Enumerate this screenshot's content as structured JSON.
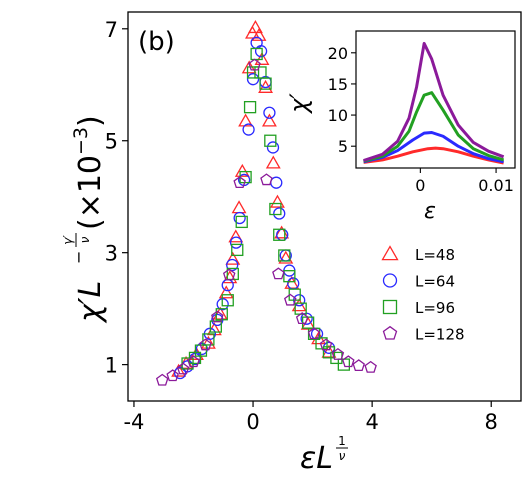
{
  "chart_data": {
    "type": "scatter",
    "panel_label": "(b)",
    "xlabel": {
      "main": "εL",
      "exp_num": "1",
      "exp_den": "ν"
    },
    "ylabel": {
      "main": "χ′L",
      "exp_minus": "−",
      "exp_num": "γ′",
      "exp_den": "ν",
      "suffix": " (×10",
      "suffix_sup": "−3",
      "suffix_end": ")"
    },
    "xlim": [
      -4.2,
      9.0
    ],
    "ylim": [
      0.35,
      7.3
    ],
    "xticks": [
      {
        "v": -4,
        "t": "-4"
      },
      {
        "v": 0,
        "t": "0"
      },
      {
        "v": 4,
        "t": "4"
      },
      {
        "v": 8,
        "t": "8"
      }
    ],
    "yticks": [
      {
        "v": 1,
        "t": "1"
      },
      {
        "v": 3,
        "t": "3"
      },
      {
        "v": 5,
        "t": "5"
      },
      {
        "v": 7,
        "t": "7"
      }
    ],
    "legend_position": "right",
    "series": [
      {
        "name": "L=48",
        "marker": "triangle",
        "color": "#ff2a2a",
        "x": [
          -2.5,
          -2.25,
          -1.9,
          -1.5,
          -1.3,
          -1.1,
          -0.9,
          -0.78,
          -0.68,
          -0.58,
          -0.47,
          -0.36,
          -0.25,
          -0.13,
          -0.02,
          0.08,
          0.2,
          0.3,
          0.42,
          0.55,
          0.68,
          0.82,
          0.96,
          1.1,
          1.3,
          1.55,
          1.85,
          2.2,
          2.55
        ],
        "y": [
          0.88,
          1.02,
          1.18,
          1.38,
          1.62,
          1.9,
          2.28,
          2.55,
          2.88,
          3.28,
          3.8,
          4.45,
          5.35,
          6.3,
          6.92,
          7.02,
          6.88,
          6.45,
          5.95,
          5.35,
          4.6,
          3.9,
          3.35,
          2.9,
          2.45,
          2.05,
          1.72,
          1.46,
          1.22
        ]
      },
      {
        "name": "L=64",
        "marker": "circle",
        "color": "#2a2aff",
        "x": [
          -2.45,
          -2.2,
          -1.95,
          -1.72,
          -1.45,
          -1.2,
          -1.02,
          -0.85,
          -0.7,
          -0.57,
          -0.45,
          -0.3,
          -0.15,
          0.0,
          0.12,
          0.27,
          0.42,
          0.55,
          0.67,
          0.78,
          0.88,
          0.98,
          1.1,
          1.22,
          1.35,
          1.55,
          1.8,
          2.15,
          2.55
        ],
        "y": [
          0.85,
          0.97,
          1.1,
          1.28,
          1.55,
          1.8,
          2.08,
          2.42,
          2.78,
          3.18,
          3.62,
          4.3,
          5.2,
          6.1,
          6.75,
          6.6,
          6.05,
          5.5,
          4.88,
          4.25,
          3.7,
          3.32,
          2.95,
          2.68,
          2.45,
          2.15,
          1.82,
          1.55,
          1.3
        ]
      },
      {
        "name": "L=96",
        "marker": "square",
        "color": "#22a022",
        "x": [
          -2.2,
          -1.95,
          -1.75,
          -1.5,
          -1.25,
          -1.05,
          -0.85,
          -0.68,
          -0.53,
          -0.38,
          -0.25,
          -0.1,
          0.0,
          0.12,
          0.25,
          0.42,
          0.58,
          0.75,
          0.88,
          1.05,
          1.22,
          1.4,
          1.6,
          1.85,
          2.05,
          2.3,
          2.55,
          2.8,
          3.05
        ],
        "y": [
          1.02,
          1.12,
          1.25,
          1.45,
          1.68,
          1.9,
          2.15,
          2.62,
          3.05,
          3.55,
          4.35,
          5.6,
          6.22,
          6.55,
          6.22,
          6.02,
          5.0,
          3.78,
          3.32,
          2.95,
          2.58,
          2.25,
          2.0,
          1.75,
          1.55,
          1.38,
          1.22,
          1.12,
          1.0
        ]
      },
      {
        "name": "L=128",
        "marker": "pentagon",
        "color": "#8b1a9a",
        "x": [
          -3.05,
          -2.7,
          -2.35,
          -2.0,
          -1.6,
          -1.2,
          -0.8,
          -0.45,
          0.05,
          0.45,
          0.85,
          1.25,
          1.65,
          2.05,
          2.45,
          2.85,
          3.2,
          3.55,
          3.95
        ],
        "y": [
          0.72,
          0.8,
          0.92,
          1.05,
          1.35,
          1.85,
          2.6,
          4.25,
          6.35,
          4.3,
          2.62,
          2.15,
          1.82,
          1.55,
          1.35,
          1.18,
          1.05,
          0.98,
          0.95
        ]
      }
    ],
    "inset": {
      "type": "line",
      "xlabel": "ε",
      "ylabel": "χ′",
      "xlim": [
        -0.0085,
        0.0125
      ],
      "ylim": [
        1.5,
        23.5
      ],
      "xticks": [
        {
          "v": 0,
          "t": "0"
        },
        {
          "v": 0.01,
          "t": "0.01"
        }
      ],
      "yticks": [
        {
          "v": 5,
          "t": "5"
        },
        {
          "v": 10,
          "t": "10"
        },
        {
          "v": 15,
          "t": "15"
        },
        {
          "v": 20,
          "t": "20"
        }
      ],
      "series": [
        {
          "name": "L=48",
          "color": "#ff2a2a",
          "x": [
            -0.0075,
            -0.005,
            -0.003,
            -0.001,
            0.001,
            0.002,
            0.003,
            0.005,
            0.007,
            0.009,
            0.011
          ],
          "y": [
            2.4,
            2.8,
            3.4,
            4.1,
            4.6,
            4.7,
            4.6,
            4.1,
            3.4,
            2.8,
            2.3
          ]
        },
        {
          "name": "L=64",
          "color": "#2a2aff",
          "x": [
            -0.0075,
            -0.005,
            -0.003,
            -0.001,
            0.0005,
            0.0015,
            0.003,
            0.005,
            0.007,
            0.009,
            0.011
          ],
          "y": [
            2.5,
            3.2,
            4.3,
            6.0,
            7.1,
            7.2,
            6.6,
            5.0,
            3.8,
            3.0,
            2.5
          ]
        },
        {
          "name": "L=96",
          "color": "#22a022",
          "x": [
            -0.0075,
            -0.005,
            -0.003,
            -0.0015,
            -0.0005,
            0.0005,
            0.0015,
            0.003,
            0.005,
            0.007,
            0.009,
            0.011
          ],
          "y": [
            2.6,
            3.4,
            5.0,
            7.4,
            10.5,
            13.2,
            13.6,
            10.8,
            6.8,
            4.6,
            3.5,
            2.8
          ]
        },
        {
          "name": "L=128",
          "color": "#8b1a9a",
          "x": [
            -0.0075,
            -0.005,
            -0.003,
            -0.0015,
            -0.0005,
            0.0005,
            0.0015,
            0.003,
            0.005,
            0.007,
            0.009,
            0.011
          ],
          "y": [
            2.7,
            3.7,
            5.8,
            9.5,
            14.5,
            21.5,
            19.0,
            13.2,
            8.4,
            5.6,
            4.2,
            3.3
          ]
        }
      ]
    }
  }
}
